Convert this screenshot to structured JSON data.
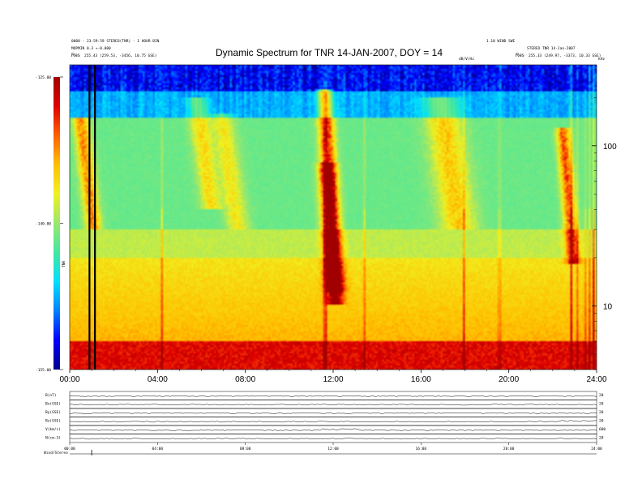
{
  "chart_data": {
    "type": "heatmap",
    "title": "Dynamic Spectrum for TNR 14-JAN-2007, DOY = 14",
    "header": {
      "left_line1": "0000 - 23:59:59 STEREO(TNR) - 1 HOUR BIN",
      "left_line2": "MOPMIN 0.3 +-0.000",
      "left_res_label": "Res",
      "left_res_value": "255.43 (259.53, -3456, 10.75 GSE)",
      "right_line1": "1.10 WIND SWE",
      "right_line2": "STEREO TNR 14-Jan-2007",
      "right_res_label": "Res",
      "right_res_value": "255.33 (249.97, -3373, 10.33 GSE)",
      "sub_label": "dB/V/Hz",
      "khz_label": "kHz"
    },
    "x": {
      "ticks": [
        "00:00",
        "04:00",
        "08:00",
        "12:00",
        "16:00",
        "20:00",
        "24:00"
      ],
      "range_hours": [
        0,
        24
      ]
    },
    "y": {
      "label": "kHz",
      "scale": "log",
      "range_khz": [
        4,
        320
      ],
      "ticks": [
        "100",
        "10"
      ],
      "tick_values": [
        100,
        10
      ]
    },
    "colorbar": {
      "label": "TNR",
      "range_db": [
        -155,
        -125
      ],
      "ticks": [
        "-125.00",
        "-140.00",
        "-155.00"
      ],
      "tick_values": [
        -125,
        -140,
        -155
      ],
      "colormap": [
        "#00008b",
        "#0000ff",
        "#0080ff",
        "#00e0ff",
        "#40e8a0",
        "#9ae86c",
        "#f0f020",
        "#ffc000",
        "#ff6000",
        "#e00000",
        "#a00000"
      ]
    },
    "background_level_db": -140.5,
    "bursts": [
      {
        "t": 0.45,
        "fmax": 150,
        "fmin": 30,
        "w": 0.35,
        "amp": 11,
        "drift": 1.2
      },
      {
        "t": 5.75,
        "fmax": 200,
        "fmin": 40,
        "w": 0.45,
        "amp": 7,
        "drift": 1.4
      },
      {
        "t": 6.9,
        "fmax": 160,
        "fmin": 30,
        "w": 0.5,
        "amp": 6,
        "drift": 1.5
      },
      {
        "t": 11.6,
        "fmax": 230,
        "fmin": 10,
        "w": 0.35,
        "amp": 15,
        "drift": 1.0
      },
      {
        "t": 11.7,
        "fmax": 80,
        "fmin": 12,
        "w": 0.4,
        "amp": 10,
        "drift": 0.8
      },
      {
        "t": 16.9,
        "fmax": 200,
        "fmin": 30,
        "w": 0.8,
        "amp": 8,
        "drift": 1.7
      },
      {
        "t": 22.5,
        "fmax": 130,
        "fmin": 18,
        "w": 0.3,
        "amp": 13,
        "drift": 1.0
      }
    ],
    "spikes": [
      4.2,
      11.55,
      11.7,
      13.4,
      18.0,
      19.6,
      22.9,
      23.2,
      23.5,
      23.75,
      23.9
    ],
    "markers_hours": [
      0.9,
      1.15
    ],
    "panels": [
      {
        "label": "B(nT)",
        "right": "20"
      },
      {
        "label": "Bx(GSE)",
        "right": "20"
      },
      {
        "label": "By(GSE)",
        "right": "20"
      },
      {
        "label": "Bz(GSE)",
        "right": "20"
      },
      {
        "label": "V(km/s)",
        "right": "600"
      },
      {
        "label": "N(cm-3)",
        "right": "20"
      }
    ],
    "panel_x_ticks": [
      "00:00",
      "04:00",
      "08:00",
      "12:00",
      "16:00",
      "20:00",
      "24:00"
    ],
    "footer_label": "Wind/Stereo"
  }
}
